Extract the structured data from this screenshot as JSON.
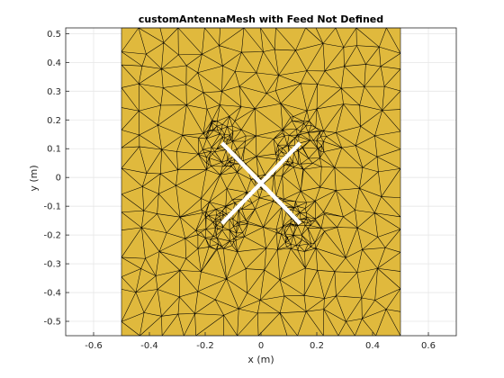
{
  "chart_data": {
    "type": "mesh",
    "title": "customAntennaMesh with Feed Not Defined",
    "xlabel": "x (m)",
    "ylabel": "y (m)",
    "xlim": [
      -0.7,
      0.7
    ],
    "ylim": [
      -0.55,
      0.52
    ],
    "xticks": [
      -0.6,
      -0.4,
      -0.2,
      0,
      0.2,
      0.4,
      0.6
    ],
    "xtick_labels": [
      "-0.6",
      "-0.4",
      "-0.2",
      "0",
      "0.2",
      "0.4",
      "0.6"
    ],
    "yticks": [
      -0.5,
      -0.4,
      -0.3,
      -0.2,
      -0.1,
      0,
      0.1,
      0.2,
      0.3,
      0.4,
      0.5
    ],
    "ytick_labels": [
      "-0.5",
      "-0.4",
      "-0.3",
      "-0.2",
      "-0.1",
      "0",
      "0.1",
      "0.2",
      "0.3",
      "0.4",
      "0.5"
    ],
    "grid": true,
    "plate": {
      "x": [
        -0.5,
        0.5
      ],
      "y": [
        -0.55,
        0.52
      ]
    },
    "slot_x": {
      "strips": [
        {
          "from": [
            -0.14,
            0.12
          ],
          "to": [
            0.14,
            -0.16
          ]
        },
        {
          "from": [
            -0.14,
            -0.16
          ],
          "to": [
            0.14,
            0.12
          ]
        }
      ]
    },
    "mesh_density_centers": [
      [
        -0.14,
        0.12
      ],
      [
        0.14,
        0.12
      ],
      [
        -0.14,
        -0.16
      ],
      [
        0.14,
        -0.16
      ]
    ],
    "colors": {
      "plate": "#e0b93d",
      "mesh_edge": "#000000",
      "slot": "#ffffff",
      "grid": "#e6e6e6",
      "axis": "#262626"
    }
  }
}
